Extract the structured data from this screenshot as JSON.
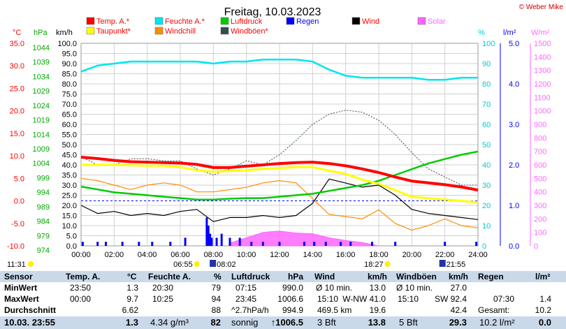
{
  "title": "Freitag, 10.03.2023",
  "copyright": "© Weber Mike",
  "legend": [
    {
      "label": "Temp. A.*",
      "color": "#ff0000"
    },
    {
      "label": "Feuchte A.*",
      "color": "#00e5ee"
    },
    {
      "label": "Luftdruck",
      "color": "#00cc00"
    },
    {
      "label": "Regen",
      "color": "#0000ff",
      "text_color": "#0000ff"
    },
    {
      "label": "Wind",
      "color": "#000000"
    },
    {
      "label": "Solar",
      "color": "#ff66ff",
      "text_color": "#ff66ff"
    },
    {
      "label": "Taupunkt*",
      "color": "#ffff00",
      "text_color": "#ff0000"
    },
    {
      "label": "Windchill",
      "color": "#ff8c00",
      "text_color": "#ff0000"
    },
    {
      "label": "Windböen*",
      "color": "#2f4f4f"
    }
  ],
  "axes": {
    "temp": {
      "unit": "°C",
      "ticks": [
        "35.0",
        "30.0",
        "25.0",
        "20.0",
        "15.0",
        "10.0",
        "5.0",
        "0.0",
        "-5.0",
        "-10.0"
      ],
      "color": "#ff0000"
    },
    "press": {
      "unit": "hPa",
      "ticks": [
        "1044",
        "1039",
        "1034",
        "1029",
        "1024",
        "1019",
        "1014",
        "1009",
        "1004",
        "999",
        "994",
        "989",
        "984",
        "979",
        "974"
      ],
      "color": "#00aa00"
    },
    "wind": {
      "unit": "km/h",
      "ticks": [
        "100.0",
        "95.0",
        "90.0",
        "85.0",
        "80.0",
        "75.0",
        "70.0",
        "65.0",
        "60.0",
        "55.0",
        "50.0",
        "45.0",
        "40.0",
        "35.0",
        "30.0",
        "25.0",
        "20.0",
        "15.0",
        "10.0",
        "5.0",
        "0.0"
      ],
      "color": "#000000"
    },
    "hum": {
      "unit": "%",
      "ticks": [
        "100",
        "90",
        "80",
        "70",
        "60",
        "50",
        "40",
        "30",
        "20",
        "10",
        "0"
      ],
      "color": "#00cccc"
    },
    "rain": {
      "unit": "l/m²",
      "ticks": [
        "5.0",
        "4.0",
        "3.0",
        "2.0",
        "1.0",
        "0.0"
      ],
      "color": "#0000ff"
    },
    "solar": {
      "unit": "W/m²",
      "ticks": [
        "1500",
        "1400",
        "1300",
        "1200",
        "1100",
        "1000",
        "900",
        "800",
        "700",
        "600",
        "500",
        "400",
        "300",
        "200",
        "100",
        "0"
      ],
      "color": "#ff66ff"
    },
    "x": {
      "ticks": [
        "00:00",
        "02:00",
        "04:00",
        "06:00",
        "08:00",
        "10:00",
        "12:00",
        "14:00",
        "16:00",
        "18:00",
        "20:00",
        "22:00",
        "24:00"
      ]
    }
  },
  "sun": {
    "sunrise": "06:55",
    "sunset": "18:27",
    "moonset": "08:02",
    "moonrise": "21:55",
    "daylength": "11:31"
  },
  "chart_data": {
    "type": "line",
    "title": "Freitag, 10.03.2023",
    "x_unit": "hour",
    "xlim": [
      0,
      24
    ],
    "series": [
      {
        "name": "Temp. A.*",
        "unit": "°C",
        "x": [
          0,
          1,
          2,
          3,
          4,
          5,
          6,
          7,
          8,
          9,
          10,
          11,
          12,
          13,
          14,
          15,
          16,
          17,
          18,
          19,
          20,
          21,
          22,
          23,
          24
        ],
        "values": [
          9.7,
          9.4,
          9.0,
          8.7,
          8.6,
          8.5,
          8.4,
          8.1,
          7.4,
          7.4,
          7.7,
          8.0,
          8.3,
          8.5,
          8.6,
          8.3,
          7.8,
          7.1,
          6.3,
          5.3,
          4.4,
          4.0,
          3.6,
          3.1,
          2.4
        ]
      },
      {
        "name": "Taupunkt*",
        "unit": "°C",
        "x": [
          0,
          1,
          2,
          3,
          4,
          5,
          6,
          7,
          8,
          9,
          10,
          11,
          12,
          13,
          14,
          15,
          16,
          17,
          18,
          19,
          20,
          21,
          22,
          23,
          24
        ],
        "values": [
          8.0,
          8.0,
          8.0,
          7.9,
          7.8,
          7.8,
          7.5,
          6.8,
          6.5,
          6.6,
          6.8,
          7.1,
          7.3,
          7.5,
          7.5,
          6.7,
          6.0,
          4.7,
          3.8,
          2.4,
          0.9,
          0.6,
          0.3,
          0.0,
          -0.3
        ]
      },
      {
        "name": "Feuchte A.*",
        "unit": "%",
        "x": [
          0,
          1,
          2,
          3,
          4,
          5,
          6,
          7,
          8,
          9,
          10,
          11,
          12,
          13,
          14,
          15,
          16,
          17,
          18,
          19,
          20,
          21,
          22,
          23,
          24
        ],
        "values": [
          86,
          89,
          90,
          91,
          91,
          91,
          91,
          91,
          90,
          91,
          91,
          92,
          92,
          92,
          91,
          87,
          84,
          83,
          83,
          83,
          83,
          82,
          82,
          83,
          83
        ]
      },
      {
        "name": "Luftdruck",
        "unit": "hPa",
        "x": [
          0,
          1,
          2,
          3,
          4,
          5,
          6,
          7,
          8,
          9,
          10,
          11,
          12,
          13,
          14,
          15,
          16,
          17,
          18,
          19,
          20,
          21,
          22,
          23,
          24
        ],
        "values": [
          994.5,
          993.5,
          992.5,
          992.0,
          991.5,
          991.0,
          990.5,
          990.0,
          990.0,
          990.3,
          990.5,
          990.5,
          991.0,
          991.5,
          992.0,
          993.0,
          994.0,
          995.0,
          996.5,
          998.5,
          1000.5,
          1002.5,
          1004.0,
          1005.5,
          1006.6
        ]
      },
      {
        "name": "Wind",
        "unit": "km/h",
        "x": [
          0,
          1,
          2,
          3,
          4,
          5,
          6,
          7,
          8,
          9,
          10,
          11,
          12,
          13,
          14,
          15,
          16,
          17,
          18,
          19,
          20,
          21,
          22,
          23,
          24
        ],
        "values": [
          20,
          16,
          17,
          15,
          16,
          15,
          17,
          18,
          12,
          14,
          14,
          15,
          14,
          15,
          21,
          33,
          31,
          29,
          30,
          25,
          18,
          16,
          15,
          14,
          13
        ]
      },
      {
        "name": "Windböen*",
        "unit": "km/h",
        "x": [
          0,
          1,
          2,
          3,
          4,
          5,
          6,
          7,
          8,
          9,
          10,
          11,
          12,
          13,
          14,
          15,
          16,
          17,
          18,
          19,
          20,
          21,
          22,
          23,
          24
        ],
        "values": [
          44,
          40,
          40,
          43,
          43,
          42,
          42,
          38,
          35,
          38,
          42,
          40,
          45,
          52,
          60,
          65,
          67,
          66,
          62,
          55,
          46,
          38,
          34,
          30,
          30
        ]
      },
      {
        "name": "Windchill",
        "unit": "°C",
        "x": [
          0,
          1,
          2,
          3,
          4,
          5,
          6,
          7,
          8,
          9,
          10,
          11,
          12,
          13,
          14,
          15,
          16,
          17,
          18,
          19,
          20,
          21,
          22,
          23,
          24
        ],
        "values": [
          5.0,
          4.5,
          3.5,
          2.5,
          3.5,
          4.0,
          3.5,
          2.0,
          2.0,
          2.5,
          3.0,
          4.0,
          4.5,
          4.0,
          0.5,
          -3.0,
          -3.5,
          -4.0,
          -2.0,
          -5.0,
          -6.5,
          -5.5,
          -4.0,
          -5.5,
          -6.0
        ]
      },
      {
        "name": "Solar",
        "unit": "W/m²",
        "x": [
          9,
          10,
          11,
          12,
          13,
          14,
          15,
          16,
          17,
          18
        ],
        "values": [
          20,
          60,
          100,
          110,
          95,
          90,
          60,
          40,
          25,
          0
        ]
      },
      {
        "name": "Regen",
        "unit": "l/m²",
        "x": [
          0.1,
          1,
          1.5,
          2.5,
          3.5,
          4.3,
          5.4,
          6.3,
          7.6,
          7.7,
          7.8,
          7.9,
          8.2,
          8.5,
          9,
          9.6,
          10.3,
          11,
          12,
          13.5,
          14.1,
          14.8,
          15.7,
          16.3,
          17.6,
          19,
          22,
          23.9
        ],
        "values": [
          0.1,
          0.1,
          0.1,
          0.1,
          0.1,
          0.1,
          0.1,
          0.2,
          0.7,
          0.5,
          0.3,
          0.2,
          0.2,
          0.3,
          0.2,
          0.2,
          0.1,
          0.1,
          0.1,
          0.1,
          0.1,
          0.1,
          0.1,
          0.1,
          0.1,
          0.1,
          0.1,
          0.1
        ]
      }
    ]
  },
  "table": {
    "headers": [
      {
        "label": "Sensor",
        "x": 6
      },
      {
        "label": "Temp. A.",
        "x": 94
      },
      {
        "label": "°C",
        "x": 182
      },
      {
        "label": "Feuchte A.",
        "x": 212
      },
      {
        "label": "%",
        "x": 306
      },
      {
        "label": "Luftdruck",
        "x": 331
      },
      {
        "label": "hPa",
        "x": 412
      },
      {
        "label": "Wind",
        "x": 450
      },
      {
        "label": "km/h",
        "x": 526
      },
      {
        "label": "Windböen",
        "x": 567
      },
      {
        "label": "km/h",
        "x": 642
      },
      {
        "label": "Regen",
        "x": 684
      },
      {
        "label": "l/m²",
        "x": 766
      }
    ],
    "rows": [
      {
        "cells": [
          {
            "t": "MinWert",
            "x": 6,
            "b": true
          },
          {
            "t": "23:50",
            "x": 100
          },
          {
            "t": "1.3",
            "x": 198,
            "r": true
          },
          {
            "t": "20:30",
            "x": 218
          },
          {
            "t": "79",
            "x": 316,
            "r": true
          },
          {
            "t": "07:15",
            "x": 337
          },
          {
            "t": "990.0",
            "x": 434,
            "r": true
          },
          {
            "t": "Ø 10 min.",
            "x": 452
          },
          {
            "t": "13.0",
            "x": 552,
            "r": true
          },
          {
            "t": "Ø 10 min.",
            "x": 567
          },
          {
            "t": "27.0",
            "x": 668,
            "r": true
          }
        ]
      },
      {
        "cells": [
          {
            "t": "MaxWert",
            "x": 6,
            "b": true
          },
          {
            "t": "00:00",
            "x": 100
          },
          {
            "t": "9.7",
            "x": 198,
            "r": true
          },
          {
            "t": "10:25",
            "x": 218
          },
          {
            "t": "94",
            "x": 316,
            "r": true
          },
          {
            "t": "23:45",
            "x": 337
          },
          {
            "t": "1006.6",
            "x": 434,
            "r": true
          },
          {
            "t": "15:10",
            "x": 454
          },
          {
            "t": "W-NW 41.0",
            "x": 552,
            "r": true
          },
          {
            "t": "15:10",
            "x": 569
          },
          {
            "t": "SW 92.4",
            "x": 668,
            "r": true
          },
          {
            "t": "07:30",
            "x": 706
          },
          {
            "t": "1.4",
            "x": 789,
            "r": true
          }
        ]
      },
      {
        "cells": [
          {
            "t": "Durchschnitt",
            "x": 6,
            "b": true
          },
          {
            "t": "6.62",
            "x": 198,
            "r": true
          },
          {
            "t": "88",
            "x": 316,
            "r": true
          },
          {
            "t": "^2.7hPa/h",
            "x": 331
          },
          {
            "t": "994.9",
            "x": 434,
            "r": true
          },
          {
            "t": "469.5 km",
            "x": 454
          },
          {
            "t": "19.6",
            "x": 552,
            "r": true
          },
          {
            "t": "42.4",
            "x": 668,
            "r": true
          },
          {
            "t": "Gesamt:",
            "x": 684
          },
          {
            "t": "10.2",
            "x": 789,
            "r": true
          }
        ]
      }
    ],
    "footer": [
      {
        "t": "10.03. 23:55",
        "x": 6,
        "b": true
      },
      {
        "t": "1.3",
        "x": 198,
        "r": true,
        "b": true
      },
      {
        "t": "4.34 g/m³",
        "x": 215
      },
      {
        "t": "82",
        "x": 316,
        "r": true,
        "b": true
      },
      {
        "t": "sonnig",
        "x": 331
      },
      {
        "t": "↑1006.5",
        "x": 434,
        "r": true,
        "b": true
      },
      {
        "t": "3 Bft",
        "x": 454
      },
      {
        "t": "13.8",
        "x": 552,
        "r": true,
        "b": true
      },
      {
        "t": "5 Bft",
        "x": 571
      },
      {
        "t": "29.3",
        "x": 668,
        "r": true,
        "b": true
      },
      {
        "t": "10.2 l/m²",
        "x": 686
      },
      {
        "t": "0.0",
        "x": 789,
        "r": true,
        "b": true
      }
    ]
  }
}
